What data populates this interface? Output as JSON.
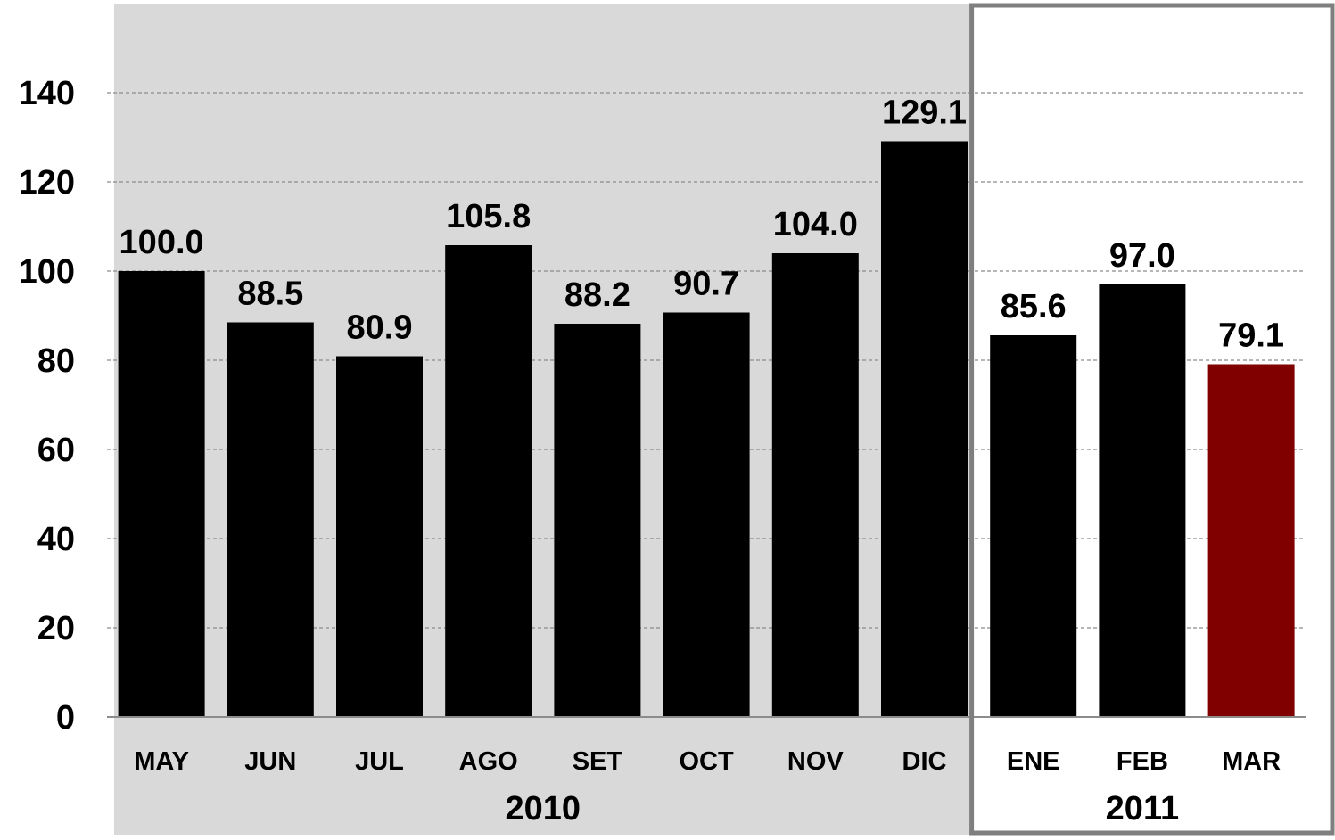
{
  "chart_data": {
    "type": "bar",
    "categories": [
      "MAY",
      "JUN",
      "JUL",
      "AGO",
      "SET",
      "OCT",
      "NOV",
      "DIC",
      "ENE",
      "FEB",
      "MAR"
    ],
    "values": [
      100.0,
      88.5,
      80.9,
      105.8,
      88.2,
      90.7,
      104.0,
      129.1,
      85.6,
      97.0,
      79.1
    ],
    "value_labels": [
      "100.0",
      "88.5",
      "80.9",
      "105.8",
      "88.2",
      "90.7",
      "104.0",
      "129.1",
      "85.6",
      "97.0",
      "79.1"
    ],
    "groups": [
      {
        "label": "2010",
        "categories": [
          "MAY",
          "JUN",
          "JUL",
          "AGO",
          "SET",
          "OCT",
          "NOV",
          "DIC"
        ]
      },
      {
        "label": "2011",
        "categories": [
          "ENE",
          "FEB",
          "MAR"
        ]
      }
    ],
    "yticks": [
      "0",
      "20",
      "40",
      "60",
      "80",
      "100",
      "120",
      "140"
    ],
    "ylim": [
      0,
      160
    ],
    "grid": true,
    "title": "",
    "xlabel": "",
    "ylabel": "",
    "colors": {
      "bar": "#000000",
      "highlight_bar": "#800000",
      "highlight_category": "MAR",
      "background_2010": "#d9d9d9",
      "background_2011": "#ffffff",
      "frame_2011": "#7f7f7f",
      "gridline": "#8c8c8c",
      "axis": "#8c8c8c"
    }
  }
}
